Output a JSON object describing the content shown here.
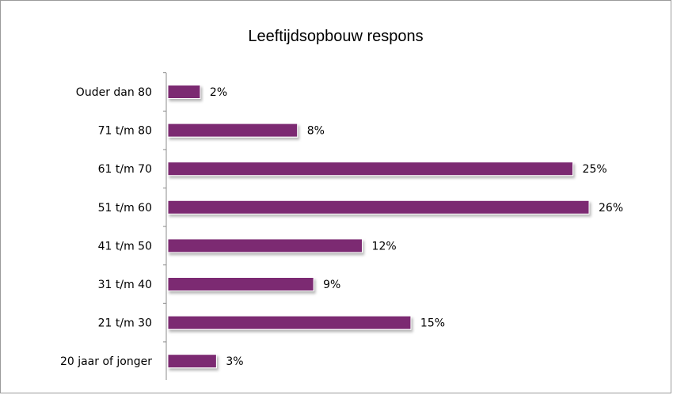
{
  "chart_data": {
    "type": "bar",
    "orientation": "horizontal",
    "title": "Leeftijdsopbouw respons",
    "categories": [
      "Ouder dan 80",
      "71 t/m 80",
      "61 t/m 70",
      "51 t/m 60",
      "41 t/m 50",
      "31 t/m 40",
      "21 t/m 30",
      "20 jaar of jonger"
    ],
    "values": [
      2,
      8,
      25,
      26,
      12,
      9,
      15,
      3
    ],
    "value_labels": [
      "2%",
      "8%",
      "25%",
      "26%",
      "12%",
      "9%",
      "15%",
      "3%"
    ],
    "value_unit": "%",
    "xlim": [
      0,
      26
    ],
    "grid": false,
    "legend": "none",
    "bar_color": "#7b2a72"
  }
}
